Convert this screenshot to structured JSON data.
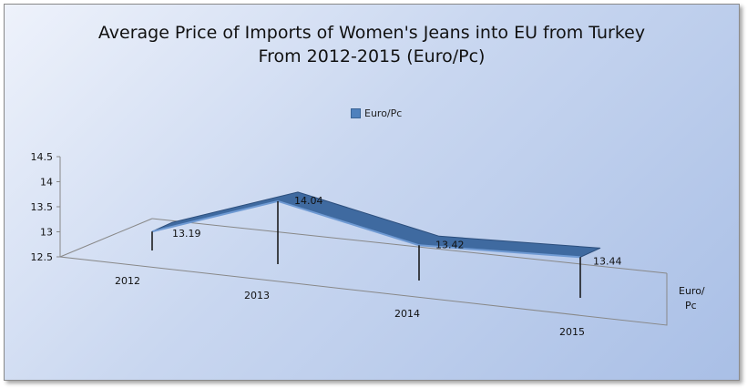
{
  "chart_data": {
    "type": "area",
    "title": [
      "Average Price of Imports of Women's Jeans into EU from Turkey",
      "From 2012-2015  (Euro/Pc)"
    ],
    "categories": [
      "2012",
      "2013",
      "2014",
      "2015"
    ],
    "series": [
      {
        "name": "Euro/Pc",
        "values": [
          13.19,
          14.04,
          13.42,
          13.44
        ],
        "color": "#4f81bd"
      }
    ],
    "data_labels": [
      "13.19",
      "14.04",
      "13.42",
      "13.44"
    ],
    "y_ticks": [
      "12.5",
      "13",
      "13.5",
      "14",
      "14.5"
    ],
    "ylim": [
      12.5,
      14.5
    ],
    "depth_axis_label": [
      "Euro/",
      "Pc"
    ],
    "legend_position": "top",
    "grid": false,
    "style": "3d-ribbon"
  }
}
